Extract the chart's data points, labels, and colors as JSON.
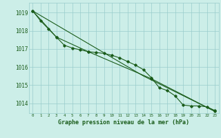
{
  "title": "",
  "xlabel": "Graphe pression niveau de la mer (hPa)",
  "background_color": "#cceee8",
  "grid_color": "#99cccc",
  "line_color": "#1a5c1a",
  "line1_points": [
    [
      0,
      1019.1
    ],
    [
      1,
      1018.55
    ],
    [
      2,
      1018.1
    ],
    [
      3,
      1017.65
    ],
    [
      4,
      1017.2
    ],
    [
      5,
      1017.05
    ],
    [
      6,
      1016.95
    ],
    [
      7,
      1016.85
    ],
    [
      8,
      1016.8
    ],
    [
      9,
      1016.75
    ],
    [
      10,
      1016.65
    ],
    [
      11,
      1016.5
    ],
    [
      12,
      1016.3
    ],
    [
      13,
      1016.1
    ],
    [
      14,
      1015.85
    ],
    [
      15,
      1015.4
    ],
    [
      16,
      1014.85
    ],
    [
      17,
      1014.7
    ],
    [
      18,
      1014.4
    ],
    [
      19,
      1013.9
    ],
    [
      20,
      1013.85
    ],
    [
      21,
      1013.85
    ],
    [
      22,
      1013.8
    ],
    [
      23,
      1013.6
    ]
  ],
  "line2_points": [
    [
      0,
      1019.1
    ],
    [
      3,
      1017.65
    ],
    [
      7,
      1016.85
    ],
    [
      15,
      1015.35
    ],
    [
      23,
      1013.55
    ]
  ],
  "line3_points": [
    [
      0,
      1019.1
    ],
    [
      14,
      1015.5
    ],
    [
      23,
      1013.55
    ]
  ],
  "ylim": [
    1013.45,
    1019.55
  ],
  "yticks": [
    1014,
    1015,
    1016,
    1017,
    1018,
    1019
  ],
  "xticks": [
    0,
    1,
    2,
    3,
    4,
    5,
    6,
    7,
    8,
    9,
    10,
    11,
    12,
    13,
    14,
    15,
    16,
    17,
    18,
    19,
    20,
    21,
    22,
    23
  ]
}
